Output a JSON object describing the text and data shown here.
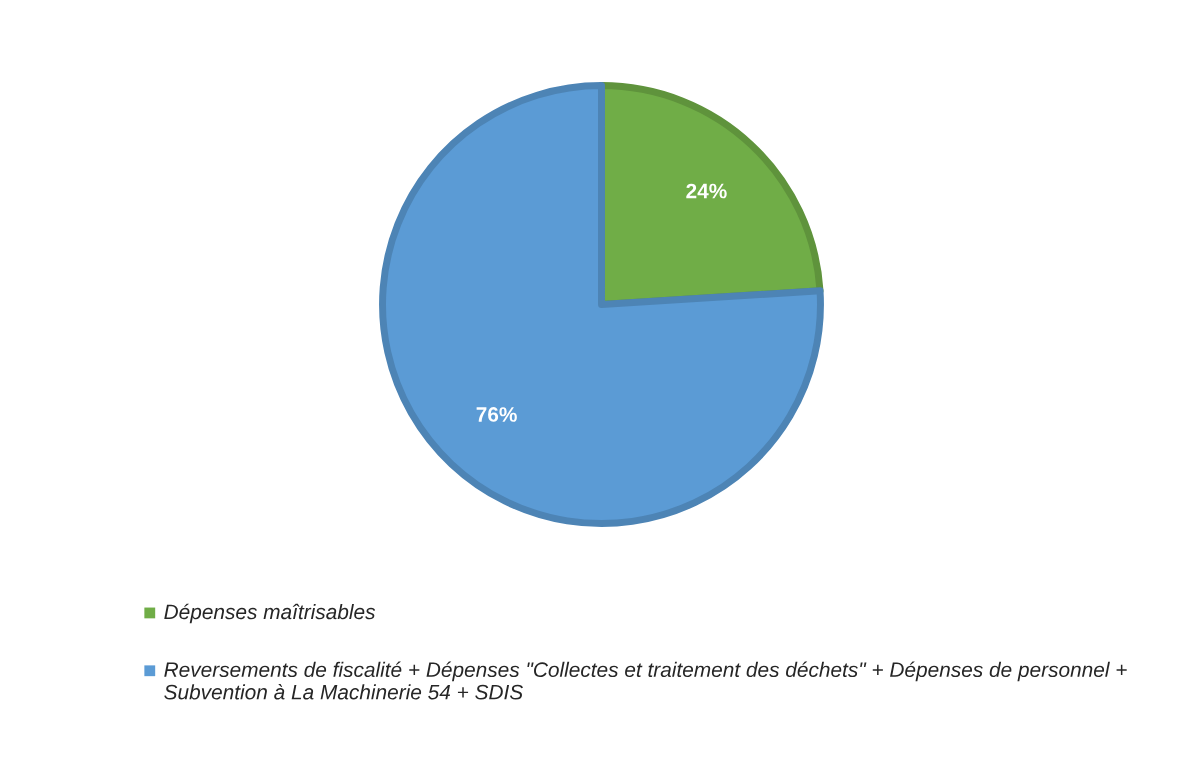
{
  "chart_data": {
    "type": "pie",
    "categories": [
      "Dépenses maîtrisables",
      "Reversements de fiscalité + Dépenses \"Collectes et traitement des déchets\" + Dépenses de personnel + Subvention à La Machinerie 54 + SDIS"
    ],
    "values": [
      24,
      76
    ],
    "colors": [
      "#70ad47",
      "#5b9bd5"
    ],
    "value_labels": [
      "24%",
      "76%"
    ],
    "legend": "bottom"
  }
}
